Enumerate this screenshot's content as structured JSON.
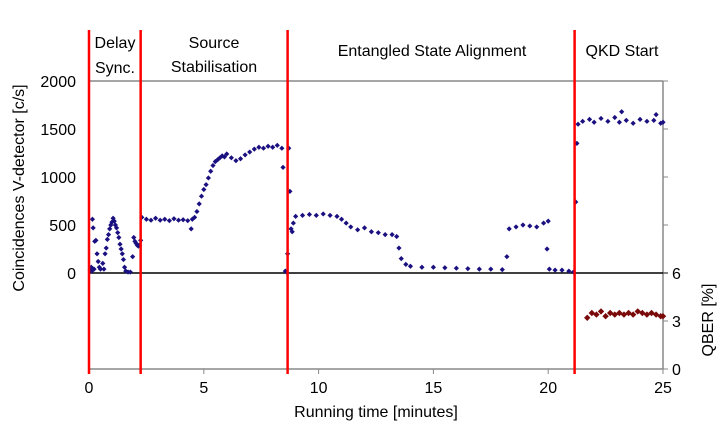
{
  "chart_data": {
    "type": "scatter",
    "xlabel": "Running time [minutes]",
    "ylabel": "Coincidences V-detector [c/s]",
    "y2label": "QBER [%]",
    "xlim": [
      0,
      25
    ],
    "ylim": [
      0,
      2000
    ],
    "y2lim": [
      0,
      6
    ],
    "xticks": [
      "0",
      "5",
      "10",
      "15",
      "20",
      "25"
    ],
    "yticks": [
      "0",
      "500",
      "1000",
      "1500",
      "2000"
    ],
    "y2ticks": [
      "0",
      "3",
      "6"
    ],
    "phases": [
      {
        "label": [
          "Delay",
          "Sync."
        ],
        "start": 0
      },
      {
        "label": [
          "Source",
          "Stabilisation"
        ],
        "start": 2.25
      },
      {
        "label": [
          "Entangled State Alignment"
        ],
        "start": 8.65
      },
      {
        "label": [
          "QKD Start"
        ],
        "start": 21.15
      }
    ],
    "colors": {
      "coincidences": "#1a1080",
      "qber": "#7a0a0a",
      "phase_line": "#ff0000"
    },
    "series": [
      {
        "axis": "left",
        "points": [
          [
            0.05,
            30
          ],
          [
            0.1,
            60
          ],
          [
            0.12,
            20
          ],
          [
            0.15,
            560
          ],
          [
            0.18,
            470
          ],
          [
            0.22,
            40
          ],
          [
            0.25,
            330
          ],
          [
            0.3,
            340
          ],
          [
            0.35,
            200
          ],
          [
            0.4,
            120
          ],
          [
            0.45,
            60
          ],
          [
            0.5,
            40
          ],
          [
            0.6,
            100
          ],
          [
            0.65,
            40
          ],
          [
            0.7,
            200
          ],
          [
            0.75,
            260
          ],
          [
            0.8,
            350
          ],
          [
            0.85,
            400
          ],
          [
            0.9,
            460
          ],
          [
            0.95,
            500
          ],
          [
            1.0,
            530
          ],
          [
            1.05,
            570
          ],
          [
            1.1,
            540
          ],
          [
            1.15,
            500
          ],
          [
            1.2,
            470
          ],
          [
            1.25,
            420
          ],
          [
            1.3,
            370
          ],
          [
            1.35,
            300
          ],
          [
            1.4,
            250
          ],
          [
            1.45,
            200
          ],
          [
            1.5,
            140
          ],
          [
            1.55,
            60
          ],
          [
            1.6,
            20
          ],
          [
            1.7,
            10
          ],
          [
            1.8,
            10
          ],
          [
            1.9,
            170
          ],
          [
            1.95,
            370
          ],
          [
            2.0,
            330
          ],
          [
            2.05,
            310
          ],
          [
            2.1,
            290
          ],
          [
            2.15,
            280
          ],
          [
            2.2,
            290
          ],
          [
            2.25,
            340
          ],
          [
            2.3,
            580
          ],
          [
            2.5,
            560
          ],
          [
            2.7,
            550
          ],
          [
            2.9,
            570
          ],
          [
            3.1,
            550
          ],
          [
            3.3,
            560
          ],
          [
            3.5,
            545
          ],
          [
            3.7,
            565
          ],
          [
            3.9,
            550
          ],
          [
            4.1,
            555
          ],
          [
            4.3,
            545
          ],
          [
            4.5,
            560
          ],
          [
            4.45,
            460
          ],
          [
            4.6,
            580
          ],
          [
            4.7,
            640
          ],
          [
            4.8,
            720
          ],
          [
            4.9,
            800
          ],
          [
            5.0,
            870
          ],
          [
            5.1,
            920
          ],
          [
            5.2,
            990
          ],
          [
            5.3,
            1060
          ],
          [
            5.4,
            1120
          ],
          [
            5.5,
            1160
          ],
          [
            5.6,
            1180
          ],
          [
            5.7,
            1200
          ],
          [
            5.8,
            1220
          ],
          [
            5.9,
            1210
          ],
          [
            6.0,
            1240
          ],
          [
            6.2,
            1200
          ],
          [
            6.4,
            1170
          ],
          [
            6.6,
            1190
          ],
          [
            6.8,
            1230
          ],
          [
            7.0,
            1260
          ],
          [
            7.2,
            1290
          ],
          [
            7.4,
            1310
          ],
          [
            7.6,
            1300
          ],
          [
            7.8,
            1320
          ],
          [
            8.0,
            1310
          ],
          [
            8.2,
            1330
          ],
          [
            8.4,
            1300
          ],
          [
            8.45,
            1100
          ],
          [
            8.55,
            20
          ],
          [
            8.6,
            10
          ],
          [
            8.65,
            200
          ],
          [
            8.7,
            1300
          ],
          [
            8.75,
            850
          ],
          [
            8.8,
            460
          ],
          [
            8.85,
            430
          ],
          [
            8.9,
            520
          ],
          [
            9.0,
            590
          ],
          [
            9.3,
            600
          ],
          [
            9.6,
            610
          ],
          [
            9.9,
            600
          ],
          [
            10.2,
            615
          ],
          [
            10.5,
            600
          ],
          [
            10.8,
            590
          ],
          [
            11.0,
            560
          ],
          [
            11.2,
            520
          ],
          [
            11.4,
            480
          ],
          [
            11.7,
            450
          ],
          [
            12.0,
            470
          ],
          [
            12.3,
            430
          ],
          [
            12.6,
            420
          ],
          [
            12.9,
            400
          ],
          [
            13.2,
            400
          ],
          [
            13.4,
            380
          ],
          [
            13.5,
            260
          ],
          [
            13.6,
            150
          ],
          [
            13.8,
            90
          ],
          [
            14.0,
            70
          ],
          [
            14.5,
            60
          ],
          [
            15.0,
            60
          ],
          [
            15.5,
            55
          ],
          [
            16.0,
            50
          ],
          [
            16.5,
            45
          ],
          [
            17.0,
            40
          ],
          [
            17.5,
            40
          ],
          [
            18.0,
            35
          ],
          [
            18.2,
            170
          ],
          [
            18.3,
            460
          ],
          [
            18.6,
            480
          ],
          [
            18.9,
            500
          ],
          [
            19.2,
            490
          ],
          [
            19.5,
            480
          ],
          [
            19.8,
            520
          ],
          [
            20.0,
            540
          ],
          [
            19.95,
            250
          ],
          [
            20.05,
            40
          ],
          [
            20.3,
            30
          ],
          [
            20.6,
            30
          ],
          [
            20.9,
            20
          ],
          [
            21.1,
            10
          ],
          [
            21.2,
            740
          ],
          [
            21.25,
            1350
          ],
          [
            21.3,
            1550
          ],
          [
            21.5,
            1580
          ],
          [
            21.8,
            1600
          ],
          [
            22.0,
            1570
          ],
          [
            22.3,
            1610
          ],
          [
            22.6,
            1580
          ],
          [
            22.9,
            1620
          ],
          [
            23.1,
            1570
          ],
          [
            23.2,
            1680
          ],
          [
            23.4,
            1590
          ],
          [
            23.7,
            1560
          ],
          [
            24.0,
            1600
          ],
          [
            24.3,
            1580
          ],
          [
            24.6,
            1590
          ],
          [
            24.7,
            1650
          ],
          [
            24.9,
            1560
          ],
          [
            25.0,
            1570
          ]
        ]
      },
      {
        "axis": "right",
        "points": [
          [
            21.7,
            3.2
          ],
          [
            21.9,
            3.5
          ],
          [
            22.1,
            3.4
          ],
          [
            22.3,
            3.6
          ],
          [
            22.5,
            3.3
          ],
          [
            22.7,
            3.5
          ],
          [
            22.9,
            3.4
          ],
          [
            23.1,
            3.5
          ],
          [
            23.3,
            3.4
          ],
          [
            23.5,
            3.5
          ],
          [
            23.7,
            3.4
          ],
          [
            23.9,
            3.6
          ],
          [
            24.1,
            3.5
          ],
          [
            24.3,
            3.4
          ],
          [
            24.5,
            3.5
          ],
          [
            24.7,
            3.4
          ],
          [
            24.9,
            3.3
          ],
          [
            25.0,
            3.3
          ]
        ]
      }
    ]
  }
}
